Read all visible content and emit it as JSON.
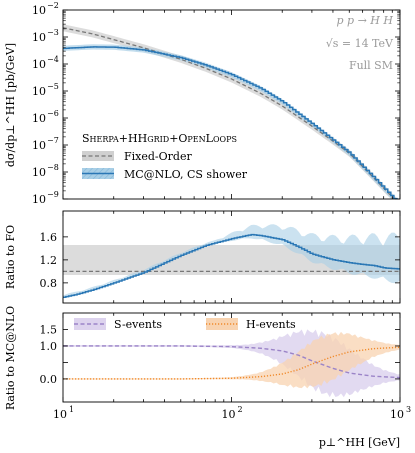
{
  "process": {
    "line1": "p p → H H",
    "line2": "√s = 14 TeV",
    "line3": "Full SM"
  },
  "legend_top": {
    "title": "Sherpa+HHgrid+OpenLoops",
    "entries": [
      "Fixed-Order",
      "MC@NLO, CS shower"
    ]
  },
  "legend_bottom": {
    "entries": [
      "S-events",
      "H-events"
    ]
  },
  "colors": {
    "fixed_order": "#777777",
    "band_fo": "#d0d0d0",
    "mcnlo": "#2a77b5",
    "band_mcnlo": "#a9cfe6",
    "s_events": "#9b84c8",
    "s_band": "#ddd3ee",
    "h_events": "#f08a2b",
    "h_band": "#f8d3b0"
  },
  "chart_data": [
    {
      "type": "line",
      "panel": "main",
      "ylabel": "dσ/dp⊥^HH [pb/GeV]",
      "xscale": "log",
      "yscale": "log",
      "xlim": [
        10,
        1000
      ],
      "ylim": [
        1e-09,
        0.01
      ],
      "xticks": [
        "10^1",
        "10^2",
        "10^3"
      ],
      "yticks": [
        "10^-9",
        "10^-8",
        "10^-7",
        "10^-6",
        "10^-5",
        "10^-4",
        "10^-3",
        "10^-2"
      ],
      "series": [
        {
          "name": "Fixed-Order",
          "x": [
            10,
            15,
            20,
            30,
            50,
            70,
            100,
            150,
            200,
            300,
            400,
            500,
            700,
            1000
          ],
          "y": [
            0.0022,
            0.0013,
            0.0008,
            0.0004,
            0.00015,
            7e-05,
            2.8e-05,
            8e-06,
            2.8e-06,
            5e-07,
            1.4e-07,
            5e-08,
            6e-09,
            6e-10
          ]
        },
        {
          "name": "MC@NLO, CS shower",
          "x": [
            10,
            15,
            20,
            30,
            50,
            70,
            100,
            150,
            200,
            300,
            400,
            500,
            700,
            1000
          ],
          "y": [
            0.00038,
            0.00043,
            0.00042,
            0.00033,
            0.00017,
            9e-05,
            4e-05,
            1.2e-05,
            4e-06,
            6e-07,
            1.5e-07,
            5e-08,
            6e-09,
            6e-10
          ]
        }
      ]
    },
    {
      "type": "line",
      "panel": "ratio_fo",
      "ylabel": "Ratio to FO",
      "xscale": "log",
      "xlim": [
        10,
        1000
      ],
      "ylim": [
        0.45,
        2.05
      ],
      "yticks": [
        "0.8",
        "1.2",
        "1.6"
      ],
      "series": [
        {
          "name": "Fixed-Order",
          "x": [
            10,
            1000
          ],
          "y": [
            1.0,
            1.0
          ]
        },
        {
          "name": "MC@NLO, CS shower",
          "x": [
            10,
            12,
            15,
            20,
            25,
            30,
            40,
            50,
            70,
            100,
            130,
            150,
            200,
            250,
            300,
            400,
            500,
            600,
            700,
            800,
            1000
          ],
          "y": [
            0.55,
            0.6,
            0.68,
            0.8,
            0.9,
            0.98,
            1.15,
            1.28,
            1.45,
            1.57,
            1.64,
            1.62,
            1.55,
            1.42,
            1.3,
            1.2,
            1.15,
            1.12,
            1.1,
            1.06,
            1.04
          ]
        }
      ]
    },
    {
      "type": "line",
      "panel": "ratio_mcnlo",
      "ylabel": "Ratio to MC@NLO",
      "xscale": "log",
      "xlabel": "p⊥^HH [GeV]",
      "xlim": [
        10,
        1000
      ],
      "ylim": [
        -0.7,
        2.0
      ],
      "yticks": [
        "0.0",
        "0.5",
        "1.0",
        "1.5"
      ],
      "series": [
        {
          "name": "S-events",
          "x": [
            10,
            50,
            100,
            150,
            200,
            250,
            300,
            400,
            500,
            700,
            1000
          ],
          "y": [
            1.0,
            1.0,
            0.98,
            0.93,
            0.85,
            0.72,
            0.55,
            0.32,
            0.18,
            0.08,
            0.04
          ]
        },
        {
          "name": "H-events",
          "x": [
            10,
            50,
            100,
            150,
            200,
            250,
            300,
            400,
            500,
            700,
            1000
          ],
          "y": [
            0.0,
            0.0,
            0.02,
            0.07,
            0.15,
            0.28,
            0.45,
            0.68,
            0.82,
            0.92,
            0.96
          ]
        }
      ]
    }
  ]
}
